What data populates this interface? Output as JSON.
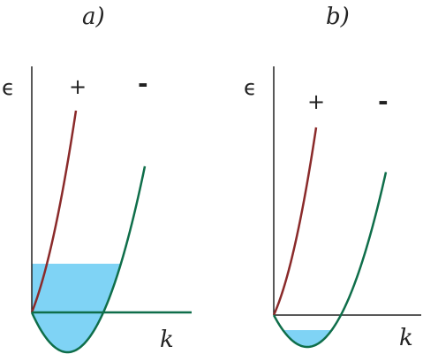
{
  "panels": [
    {
      "title": "a)",
      "y_label": "ϵ",
      "x_label": "k",
      "branch_plus_label": "+",
      "branch_minus_label": "-"
    },
    {
      "title": "b)",
      "y_label": "ϵ",
      "x_label": "k",
      "branch_plus_label": "+",
      "branch_minus_label": "-"
    }
  ],
  "colors": {
    "axis": "#222222",
    "branch_plus": "#8a2a2a",
    "branch_minus": "#0f6e4a",
    "fill": "#7fd3f5"
  }
}
